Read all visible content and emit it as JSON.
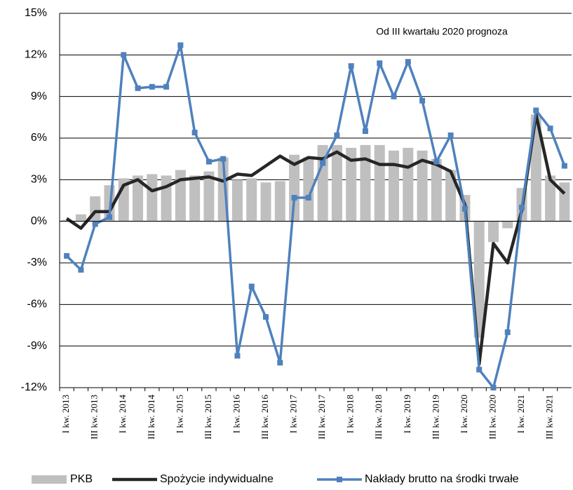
{
  "chart_data": {
    "type": "combo",
    "annotation": "Od III kwartału 2020 prognoza",
    "categories": [
      "I kw. 2013",
      null,
      "III kw. 2013",
      null,
      "I kw. 2014",
      null,
      "III kw. 2014",
      null,
      "I kw. 2015",
      null,
      "III kw. 2015",
      null,
      "I kw. 2016",
      null,
      "III kw. 2016",
      null,
      "I kw. 2017",
      null,
      "III kw. 2017",
      null,
      "I kw. 2018",
      null,
      "III kw. 2018",
      null,
      "I kw. 2019",
      null,
      "III kw. 2019",
      null,
      "I kw. 2020",
      null,
      "III kw. 2020",
      null,
      "I kw. 2021",
      null,
      "III kw. 2021",
      null
    ],
    "series": [
      {
        "name": "PKB",
        "kind": "bar",
        "color": "#bfbfbf",
        "values": [
          0.1,
          0.5,
          1.8,
          2.6,
          3.1,
          3.3,
          3.4,
          3.3,
          3.7,
          3.3,
          3.6,
          4.6,
          3.0,
          3.1,
          2.8,
          2.9,
          4.8,
          4.6,
          5.5,
          5.5,
          5.3,
          5.5,
          5.5,
          5.1,
          5.3,
          5.1,
          4.5,
          3.7,
          1.9,
          -8.4,
          -1.5,
          -0.5,
          2.4,
          7.7,
          3.3,
          2.8
        ]
      },
      {
        "name": "Spożycie indywidualne",
        "kind": "line",
        "color": "#262626",
        "values": [
          0.2,
          -0.5,
          0.7,
          0.7,
          2.6,
          3.0,
          2.2,
          2.5,
          3.0,
          3.1,
          3.2,
          2.9,
          3.4,
          3.3,
          4.0,
          4.7,
          4.1,
          4.6,
          4.5,
          5.0,
          4.4,
          4.5,
          4.1,
          4.1,
          3.9,
          4.4,
          4.1,
          3.6,
          1.2,
          -10.3,
          -1.6,
          -3.0,
          0.8,
          7.7,
          3.0,
          2.0
        ]
      },
      {
        "name": "Nakłady brutto na środki trwałe",
        "kind": "line-marker",
        "color": "#4f81bd",
        "values": [
          -2.5,
          -3.5,
          -0.2,
          0.3,
          12.0,
          9.6,
          9.7,
          9.7,
          12.7,
          6.4,
          4.3,
          4.5,
          -9.7,
          -4.7,
          -6.9,
          -10.2,
          1.7,
          1.7,
          4.2,
          6.2,
          11.2,
          6.5,
          11.4,
          9.0,
          11.5,
          8.7,
          4.3,
          6.2,
          0.9,
          -10.7,
          -12.0,
          -8.0,
          1.0,
          8.0,
          6.7,
          4.0
        ]
      }
    ],
    "ylim": [
      -12,
      15
    ],
    "yticks": [
      {
        "value": -12,
        "label": "-12%"
      },
      {
        "value": -9,
        "label": "-9%"
      },
      {
        "value": -6,
        "label": "-6%"
      },
      {
        "value": -3,
        "label": "-3%"
      },
      {
        "value": 0,
        "label": "0%"
      },
      {
        "value": 3,
        "label": "3%"
      },
      {
        "value": 6,
        "label": "6%"
      },
      {
        "value": 9,
        "label": "9%"
      },
      {
        "value": 12,
        "label": "12%"
      },
      {
        "value": 15,
        "label": "15%"
      }
    ],
    "grid": true
  }
}
